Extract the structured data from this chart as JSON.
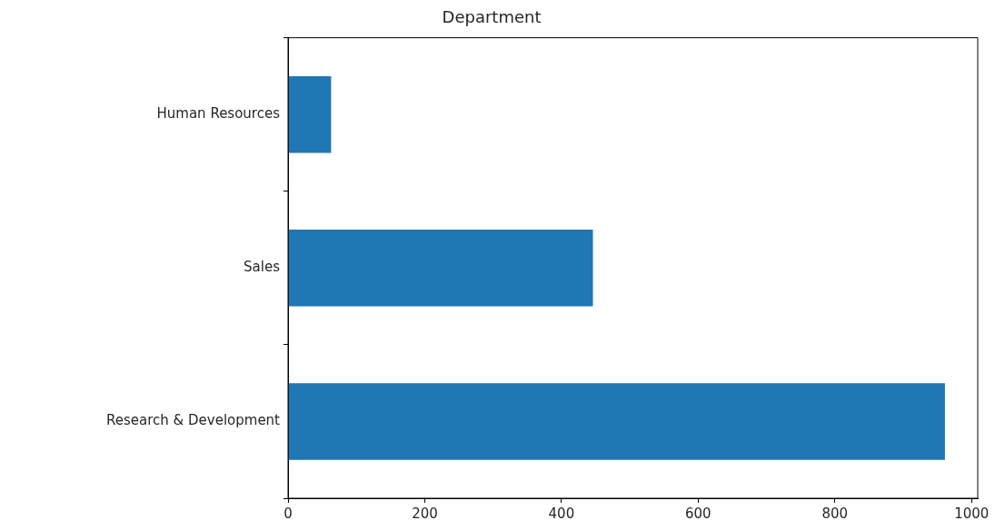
{
  "chart_data": {
    "type": "bar",
    "orientation": "horizontal",
    "title": "Department",
    "categories": [
      "Human Resources",
      "Sales",
      "Research & Development"
    ],
    "values": [
      63,
      446,
      961
    ],
    "color": "#1f77b4",
    "xlim": [
      0,
      1009
    ],
    "xticks": [
      0,
      200,
      400,
      600,
      800,
      1000
    ],
    "grid": false,
    "legend": false
  }
}
